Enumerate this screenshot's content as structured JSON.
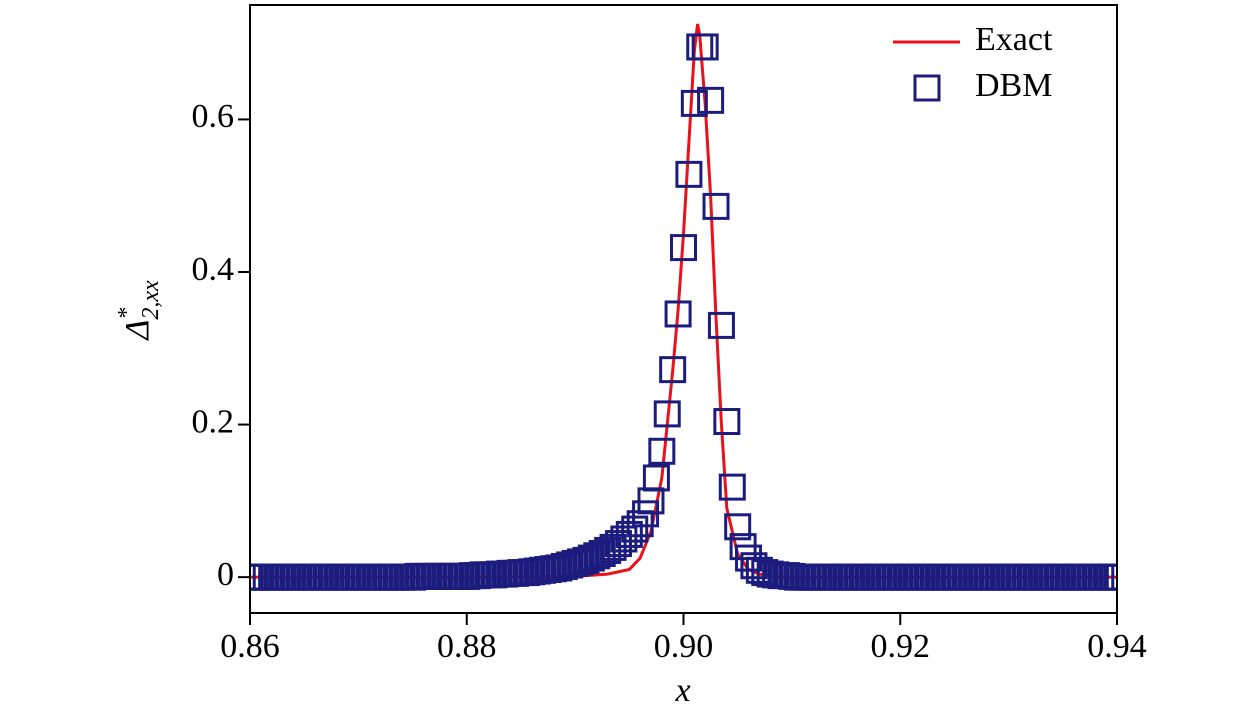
{
  "chart_data": {
    "type": "scatter",
    "x_label": "x",
    "y_label": {
      "symbol": "Δ",
      "superscript": "*",
      "subscript": "2,xx"
    },
    "xlim": [
      0.86,
      0.94
    ],
    "ylim": [
      -0.047,
      0.75
    ],
    "xticks": [
      0.86,
      0.88,
      {
        "value": 0.9,
        "label": "0.90"
      },
      0.92,
      0.94
    ],
    "yticks": [
      0,
      0.2,
      0.4,
      0.6
    ],
    "legend": "upper right",
    "series": [
      {
        "name": "Exact",
        "kind": "line",
        "color": "#e8121a",
        "x": [
          0.86,
          0.88,
          0.89,
          0.893,
          0.895,
          0.896,
          0.897,
          0.898,
          0.899,
          0.8995,
          0.9,
          0.9005,
          0.901,
          0.9013,
          0.9015,
          0.902,
          0.9025,
          0.903,
          0.9035,
          0.904,
          0.905,
          0.906,
          0.907,
          0.908,
          0.91,
          0.92,
          0.94
        ],
        "values": [
          0,
          0,
          0.001,
          0.004,
          0.01,
          0.025,
          0.06,
          0.13,
          0.27,
          0.35,
          0.45,
          0.57,
          0.69,
          0.725,
          0.71,
          0.62,
          0.5,
          0.34,
          0.2,
          0.09,
          0.03,
          0.01,
          0.004,
          0.001,
          0,
          0,
          0
        ]
      },
      {
        "name": "DBM",
        "kind": "marker",
        "color": "#1c1c7e",
        "x": [
          0.86,
          0.8605,
          0.861,
          0.8615,
          0.862,
          0.8625,
          0.863,
          0.8635,
          0.864,
          0.8645,
          0.865,
          0.8655,
          0.866,
          0.8665,
          0.867,
          0.8675,
          0.868,
          0.8685,
          0.869,
          0.8695,
          0.87,
          0.8705,
          0.871,
          0.8715,
          0.872,
          0.8725,
          0.873,
          0.8735,
          0.874,
          0.8745,
          0.875,
          0.8755,
          0.876,
          0.8765,
          0.877,
          0.8775,
          0.878,
          0.8785,
          0.879,
          0.8795,
          0.88,
          0.8805,
          0.881,
          0.8815,
          0.882,
          0.8825,
          0.883,
          0.8835,
          0.884,
          0.8845,
          0.885,
          0.8855,
          0.886,
          0.8865,
          0.887,
          0.8875,
          0.888,
          0.8885,
          0.889,
          0.8895,
          0.89,
          0.8905,
          0.891,
          0.8915,
          0.892,
          0.8925,
          0.893,
          0.8935,
          0.894,
          0.8945,
          0.895,
          0.8955,
          0.896,
          0.8965,
          0.897,
          0.8975,
          0.898,
          0.8985,
          0.899,
          0.8995,
          0.9,
          0.9005,
          0.901,
          0.9015,
          0.902,
          0.9025,
          0.903,
          0.9035,
          0.904,
          0.9045,
          0.905,
          0.9055,
          0.906,
          0.9065,
          0.907,
          0.9075,
          0.908,
          0.9085,
          0.909,
          0.9095,
          0.91,
          0.9105,
          0.911,
          0.9115,
          0.912,
          0.9125,
          0.913,
          0.9135,
          0.914,
          0.9145,
          0.915,
          0.9155,
          0.916,
          0.9165,
          0.917,
          0.9175,
          0.918,
          0.9185,
          0.919,
          0.9195,
          0.92,
          0.9205,
          0.921,
          0.9215,
          0.922,
          0.9225,
          0.923,
          0.9235,
          0.924,
          0.9245,
          0.925,
          0.9255,
          0.926,
          0.9265,
          0.927,
          0.9275,
          0.928,
          0.9285,
          0.929,
          0.9295,
          0.93,
          0.9305,
          0.931,
          0.9315,
          0.932,
          0.9325,
          0.933,
          0.9335,
          0.934,
          0.9345,
          0.935,
          0.9355,
          0.936,
          0.9365,
          0.937,
          0.9375,
          0.938,
          0.9385,
          0.939,
          0.9395,
          0.94
        ],
        "values": [
          0,
          0,
          0,
          0,
          0,
          0,
          0,
          0,
          0,
          0,
          0,
          0,
          0,
          0,
          0,
          0,
          0,
          0,
          0,
          0,
          0,
          0,
          0,
          0,
          0,
          0,
          0,
          0,
          0,
          0,
          0,
          0.001,
          0.001,
          0.001,
          0.001,
          0.001,
          0.001,
          0.001,
          0.001,
          0.001,
          0.001,
          0.002,
          0.002,
          0.003,
          0.003,
          0.003,
          0.004,
          0.004,
          0.005,
          0.005,
          0.006,
          0.006,
          0.007,
          0.008,
          0.009,
          0.01,
          0.011,
          0.012,
          0.014,
          0.016,
          0.018,
          0.02,
          0.022,
          0.025,
          0.028,
          0.031,
          0.035,
          0.039,
          0.044,
          0.05,
          0.056,
          0.063,
          0.07,
          0.083,
          0.1,
          0.13,
          0.165,
          0.214,
          0.272,
          0.345,
          0.432,
          0.528,
          0.621,
          0.695,
          0.695,
          0.625,
          0.486,
          0.33,
          0.204,
          0.118,
          0.066,
          0.04,
          0.025,
          0.015,
          0.009,
          0.006,
          0.004,
          0.003,
          0.002,
          0.002,
          0.001,
          0,
          0,
          0,
          0,
          0,
          0,
          0,
          0,
          0,
          0,
          0,
          0,
          0,
          0,
          0,
          0,
          0,
          0,
          0,
          0,
          0,
          0,
          0,
          0,
          0,
          0,
          0,
          0,
          0,
          0,
          0,
          0,
          0,
          0,
          0,
          0,
          0,
          0,
          0,
          0,
          0,
          0,
          0,
          0,
          0,
          0,
          0,
          0,
          0,
          0,
          0,
          0,
          0,
          0,
          0,
          0,
          0,
          0,
          0,
          0
        ]
      }
    ]
  }
}
